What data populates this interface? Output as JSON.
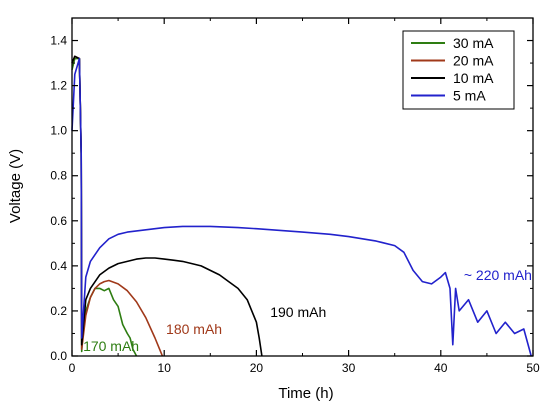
{
  "chart_data": {
    "type": "line",
    "xlabel": "Time (h)",
    "ylabel": "Voltage (V)",
    "xlim": [
      0,
      50
    ],
    "ylim": [
      0,
      1.5
    ],
    "x_ticks": [
      0,
      10,
      20,
      30,
      40,
      50
    ],
    "y_ticks": [
      0.0,
      0.2,
      0.4,
      0.6,
      0.8,
      1.0,
      1.2,
      1.4
    ],
    "x_tick_labels": [
      "0",
      "10",
      "20",
      "30",
      "40",
      "50"
    ],
    "y_tick_labels": [
      "0.0",
      "0.2",
      "0.4",
      "0.6",
      "0.8",
      "1.0",
      "1.2",
      "1.4"
    ],
    "grid": false,
    "legend_position": "top-right",
    "series": [
      {
        "name": "30 mA",
        "color": "#2e7d12",
        "x": [
          0,
          0.3,
          0.8,
          1.0,
          1.05,
          1.2,
          1.5,
          2.0,
          2.5,
          3.0,
          3.5,
          4.0,
          4.5,
          5.0,
          5.5,
          6.0,
          6.3,
          6.6,
          7.0
        ],
        "y": [
          1.27,
          1.32,
          1.32,
          0.9,
          0.02,
          0.12,
          0.2,
          0.26,
          0.3,
          0.3,
          0.29,
          0.3,
          0.25,
          0.22,
          0.14,
          0.1,
          0.08,
          0.03,
          0.0
        ]
      },
      {
        "name": "20 mA",
        "color": "#a0391a",
        "x": [
          0,
          0.3,
          0.8,
          1.0,
          1.05,
          1.5,
          2.0,
          2.5,
          3.0,
          3.5,
          4.0,
          5.0,
          6.0,
          7.0,
          8.0,
          9.0,
          9.5,
          9.8
        ],
        "y": [
          1.3,
          1.33,
          1.32,
          0.9,
          0.03,
          0.18,
          0.26,
          0.3,
          0.32,
          0.33,
          0.335,
          0.32,
          0.29,
          0.24,
          0.17,
          0.08,
          0.03,
          0.0
        ]
      },
      {
        "name": "10 mA",
        "color": "#000000",
        "x": [
          0,
          0.3,
          0.8,
          1.0,
          1.05,
          1.5,
          2.0,
          3.0,
          4.0,
          5.0,
          6.0,
          7.0,
          8.0,
          9.0,
          10.0,
          11.0,
          12.0,
          13.0,
          14.0,
          15.0,
          16.0,
          17.0,
          18.0,
          19.0,
          19.5,
          20.0,
          20.3,
          20.6
        ],
        "y": [
          1.3,
          1.33,
          1.32,
          0.9,
          0.05,
          0.25,
          0.3,
          0.36,
          0.39,
          0.41,
          0.42,
          0.43,
          0.435,
          0.435,
          0.43,
          0.425,
          0.42,
          0.41,
          0.4,
          0.38,
          0.36,
          0.33,
          0.3,
          0.25,
          0.2,
          0.15,
          0.08,
          0.0
        ]
      },
      {
        "name": "5 mA",
        "color": "#2222cc",
        "x": [
          0,
          0.3,
          0.8,
          1.0,
          1.05,
          1.5,
          2.0,
          3.0,
          4.0,
          5.0,
          6.0,
          8.0,
          10.0,
          12.0,
          15.0,
          18.0,
          20.0,
          25.0,
          28.0,
          30.0,
          33.0,
          35.0,
          36.0,
          37.0,
          38.0,
          39.0,
          40.0,
          40.5,
          41.0,
          41.3,
          41.6,
          42.0,
          43.0,
          44.0,
          45.0,
          46.0,
          47.0,
          48.0,
          49.0,
          49.8
        ],
        "y": [
          1.0,
          1.25,
          1.32,
          0.9,
          0.08,
          0.35,
          0.42,
          0.48,
          0.52,
          0.54,
          0.55,
          0.56,
          0.57,
          0.575,
          0.575,
          0.57,
          0.565,
          0.55,
          0.54,
          0.53,
          0.51,
          0.49,
          0.46,
          0.38,
          0.33,
          0.32,
          0.35,
          0.37,
          0.3,
          0.05,
          0.3,
          0.2,
          0.25,
          0.15,
          0.2,
          0.1,
          0.15,
          0.1,
          0.12,
          0.0
        ]
      }
    ],
    "annotations": [
      {
        "text": "170 mAh",
        "x": 1.2,
        "y": 0.045,
        "color": "#2e7d12"
      },
      {
        "text": "180 mAh",
        "x": 10.2,
        "y": 0.12,
        "color": "#a0391a"
      },
      {
        "text": "190 mAh",
        "x": 21.5,
        "y": 0.195,
        "color": "#000000"
      },
      {
        "text": "~ 220 mAh",
        "x": 42.5,
        "y": 0.36,
        "color": "#2222cc"
      }
    ]
  }
}
